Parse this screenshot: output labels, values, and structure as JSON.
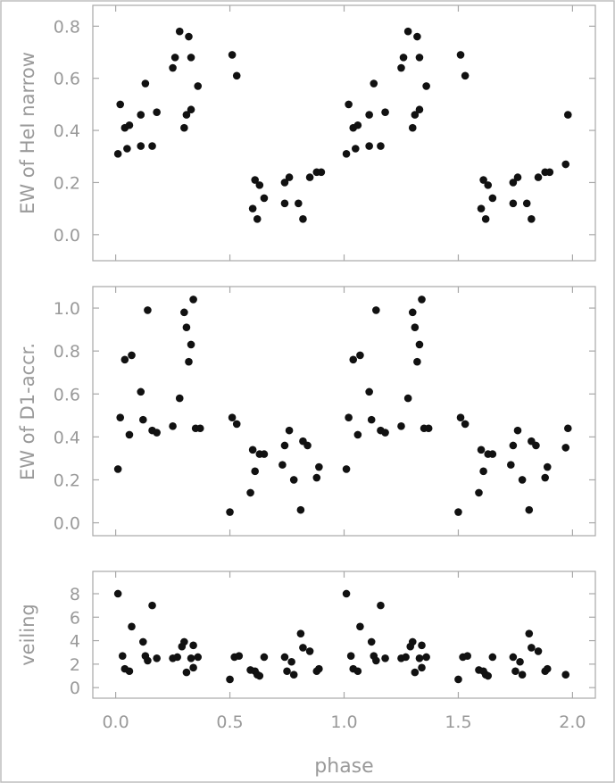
{
  "chart_data": [
    {
      "type": "scatter",
      "ylabel": "EW of HeI narrow",
      "xlabel": "",
      "xlim": [
        -0.1,
        2.1
      ],
      "ylim": [
        -0.1,
        0.88
      ],
      "xticks": [
        0.0,
        0.5,
        1.0,
        1.5,
        2.0
      ],
      "yticks": [
        0.0,
        0.2,
        0.4,
        0.6,
        0.8
      ],
      "ytick_labels": [
        "0.0",
        "0.2",
        "0.4",
        "0.6",
        "0.8"
      ],
      "show_xtick_labels": false,
      "series": [
        {
          "x": [
            0.01,
            0.02,
            0.04,
            0.05,
            0.06,
            0.11,
            0.11,
            0.13,
            0.16,
            0.18,
            0.25,
            0.26,
            0.28,
            0.3,
            0.31,
            0.32,
            0.33,
            0.33,
            0.36,
            0.51,
            0.53,
            0.6,
            0.61,
            0.62,
            0.63,
            0.65,
            0.74,
            0.74,
            0.76,
            0.8,
            0.82,
            0.85,
            0.88,
            0.9,
            1.01,
            1.02,
            1.04,
            1.05,
            1.06,
            1.11,
            1.11,
            1.13,
            1.16,
            1.18,
            1.25,
            1.26,
            1.28,
            1.3,
            1.31,
            1.32,
            1.33,
            1.33,
            1.36,
            1.51,
            1.53,
            1.6,
            1.61,
            1.62,
            1.63,
            1.65,
            1.74,
            1.74,
            1.76,
            1.8,
            1.82,
            1.85,
            1.88,
            1.9,
            1.97,
            1.98
          ],
          "y": [
            0.31,
            0.5,
            0.41,
            0.33,
            0.42,
            0.46,
            0.34,
            0.58,
            0.34,
            0.47,
            0.64,
            0.68,
            0.78,
            0.41,
            0.46,
            0.76,
            0.48,
            0.68,
            0.57,
            0.69,
            0.61,
            0.1,
            0.21,
            0.06,
            0.19,
            0.14,
            0.2,
            0.12,
            0.22,
            0.12,
            0.06,
            0.22,
            0.24,
            0.24,
            0.31,
            0.5,
            0.41,
            0.33,
            0.42,
            0.46,
            0.34,
            0.58,
            0.34,
            0.47,
            0.64,
            0.68,
            0.78,
            0.41,
            0.46,
            0.76,
            0.48,
            0.68,
            0.57,
            0.69,
            0.61,
            0.1,
            0.21,
            0.06,
            0.19,
            0.14,
            0.2,
            0.12,
            0.22,
            0.12,
            0.06,
            0.22,
            0.24,
            0.24,
            0.27,
            0.46
          ]
        }
      ]
    },
    {
      "type": "scatter",
      "ylabel": "EW of D1-accr.",
      "xlabel": "",
      "xlim": [
        -0.1,
        2.1
      ],
      "ylim": [
        -0.06,
        1.1
      ],
      "xticks": [
        0.0,
        0.5,
        1.0,
        1.5,
        2.0
      ],
      "yticks": [
        0.0,
        0.2,
        0.4,
        0.6,
        0.8,
        1.0
      ],
      "ytick_labels": [
        "0.0",
        "0.2",
        "0.4",
        "0.6",
        "0.8",
        "1.0"
      ],
      "show_xtick_labels": false,
      "series": [
        {
          "x": [
            0.01,
            0.02,
            0.04,
            0.06,
            0.07,
            0.11,
            0.12,
            0.14,
            0.16,
            0.18,
            0.25,
            0.28,
            0.3,
            0.31,
            0.32,
            0.33,
            0.34,
            0.35,
            0.37,
            0.5,
            0.51,
            0.53,
            0.59,
            0.6,
            0.61,
            0.63,
            0.65,
            0.73,
            0.74,
            0.76,
            0.78,
            0.81,
            0.82,
            0.84,
            0.88,
            0.89,
            1.01,
            1.02,
            1.04,
            1.06,
            1.07,
            1.11,
            1.12,
            1.14,
            1.16,
            1.18,
            1.25,
            1.28,
            1.3,
            1.31,
            1.32,
            1.33,
            1.34,
            1.35,
            1.37,
            1.5,
            1.51,
            1.53,
            1.59,
            1.6,
            1.61,
            1.63,
            1.65,
            1.73,
            1.74,
            1.76,
            1.78,
            1.81,
            1.82,
            1.84,
            1.88,
            1.89,
            1.97,
            1.98
          ],
          "y": [
            0.25,
            0.49,
            0.76,
            0.41,
            0.78,
            0.61,
            0.48,
            0.99,
            0.43,
            0.42,
            0.45,
            0.58,
            0.98,
            0.91,
            0.75,
            0.83,
            1.04,
            0.44,
            0.44,
            0.05,
            0.49,
            0.46,
            0.14,
            0.34,
            0.24,
            0.32,
            0.32,
            0.27,
            0.36,
            0.43,
            0.2,
            0.06,
            0.38,
            0.36,
            0.21,
            0.26,
            0.25,
            0.49,
            0.76,
            0.41,
            0.78,
            0.61,
            0.48,
            0.99,
            0.43,
            0.42,
            0.45,
            0.58,
            0.98,
            0.91,
            0.75,
            0.83,
            1.04,
            0.44,
            0.44,
            0.05,
            0.49,
            0.46,
            0.14,
            0.34,
            0.24,
            0.32,
            0.32,
            0.27,
            0.36,
            0.43,
            0.2,
            0.06,
            0.38,
            0.36,
            0.21,
            0.26,
            0.35,
            0.44
          ]
        }
      ]
    },
    {
      "type": "scatter",
      "ylabel": "veiling",
      "xlabel": "phase",
      "xlim": [
        -0.1,
        2.1
      ],
      "ylim": [
        -0.9,
        9.9
      ],
      "xticks": [
        0.0,
        0.5,
        1.0,
        1.5,
        2.0
      ],
      "xtick_labels": [
        "0.0",
        "0.5",
        "1.0",
        "1.5",
        "2.0"
      ],
      "yticks": [
        0,
        2,
        4,
        6,
        8
      ],
      "ytick_labels": [
        "0",
        "2",
        "4",
        "6",
        "8"
      ],
      "show_xtick_labels": true,
      "series": [
        {
          "x": [
            0.01,
            0.03,
            0.04,
            0.06,
            0.07,
            0.12,
            0.13,
            0.14,
            0.16,
            0.18,
            0.25,
            0.27,
            0.29,
            0.3,
            0.31,
            0.33,
            0.34,
            0.34,
            0.36,
            0.5,
            0.52,
            0.54,
            0.59,
            0.61,
            0.62,
            0.63,
            0.65,
            0.74,
            0.75,
            0.77,
            0.78,
            0.81,
            0.82,
            0.85,
            0.88,
            0.89,
            1.01,
            1.03,
            1.04,
            1.06,
            1.07,
            1.12,
            1.13,
            1.14,
            1.16,
            1.18,
            1.25,
            1.27,
            1.29,
            1.3,
            1.31,
            1.33,
            1.34,
            1.34,
            1.36,
            1.5,
            1.52,
            1.54,
            1.59,
            1.61,
            1.62,
            1.63,
            1.65,
            1.74,
            1.75,
            1.77,
            1.78,
            1.81,
            1.82,
            1.85,
            1.88,
            1.89,
            1.97
          ],
          "y": [
            8.0,
            2.7,
            1.6,
            1.4,
            5.2,
            3.9,
            2.7,
            2.3,
            7.0,
            2.5,
            2.5,
            2.6,
            3.5,
            3.9,
            1.3,
            2.5,
            3.6,
            1.7,
            2.6,
            0.7,
            2.6,
            2.7,
            1.5,
            1.4,
            1.1,
            1.0,
            2.6,
            2.6,
            1.4,
            2.2,
            1.1,
            4.6,
            3.4,
            3.1,
            1.4,
            1.6,
            8.0,
            2.7,
            1.6,
            1.4,
            5.2,
            3.9,
            2.7,
            2.3,
            7.0,
            2.5,
            2.5,
            2.6,
            3.5,
            3.9,
            1.3,
            2.5,
            3.6,
            1.7,
            2.6,
            0.7,
            2.6,
            2.7,
            1.5,
            1.4,
            1.1,
            1.0,
            2.6,
            2.6,
            1.4,
            2.2,
            1.1,
            4.6,
            3.4,
            3.1,
            1.4,
            1.6,
            1.1
          ]
        }
      ]
    }
  ]
}
